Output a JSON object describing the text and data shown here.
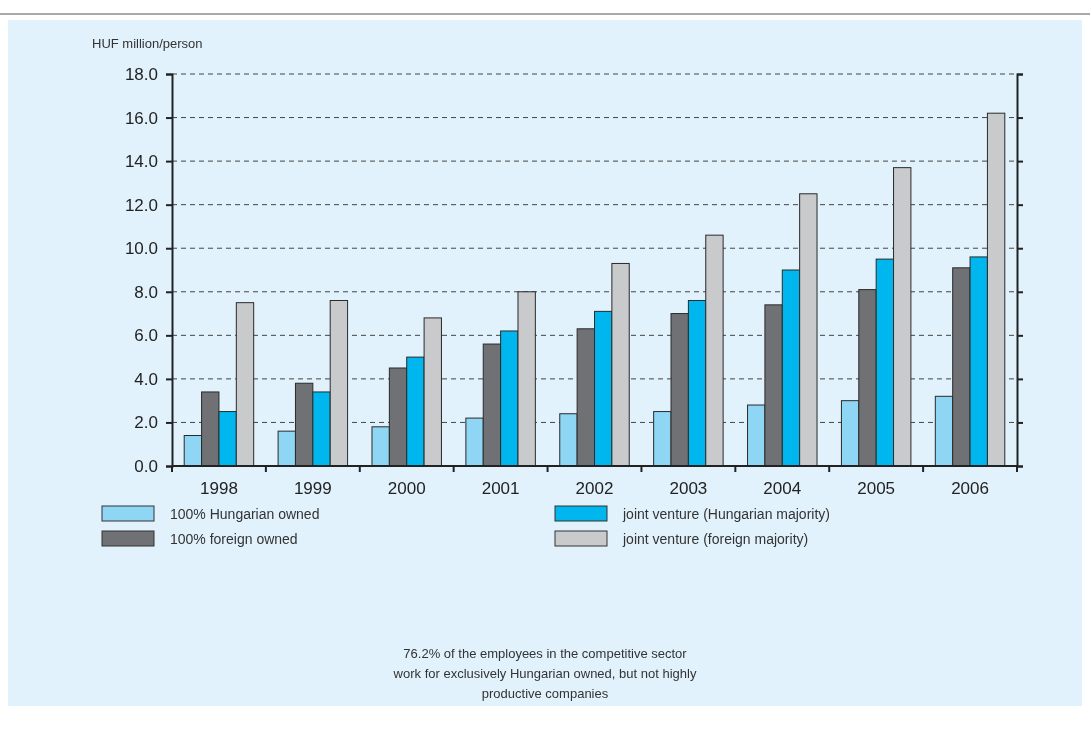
{
  "chart_data": {
    "type": "bar",
    "ylabel": "HUF million/person",
    "categories": [
      "1998",
      "1999",
      "2000",
      "2001",
      "2002",
      "2003",
      "2004",
      "2005",
      "2006"
    ],
    "series": [
      {
        "name": "100% Hungarian owned",
        "color": "#8fd6f4",
        "values": [
          1.4,
          1.6,
          1.8,
          2.2,
          2.4,
          2.5,
          2.8,
          3.0,
          3.2
        ]
      },
      {
        "name": "100% foreign owned",
        "color": "#707174",
        "values": [
          3.4,
          3.8,
          4.5,
          5.6,
          6.3,
          7.0,
          7.4,
          8.1,
          9.1
        ]
      },
      {
        "name": "joint venture (Hungarian majority)",
        "color": "#00b6ee",
        "values": [
          2.5,
          3.4,
          5.0,
          6.2,
          7.1,
          7.6,
          9.0,
          9.5,
          9.6
        ]
      },
      {
        "name": "joint venture (foreign majority)",
        "color": "#c9cacc",
        "values": [
          7.5,
          7.6,
          6.8,
          8.0,
          9.3,
          10.6,
          12.5,
          13.7,
          16.2
        ]
      }
    ],
    "ylim": [
      0,
      18
    ],
    "yticks": [
      {
        "value": 0,
        "label": "0.0"
      },
      {
        "value": 2,
        "label": "2.0"
      },
      {
        "value": 4,
        "label": "4.0"
      },
      {
        "value": 6,
        "label": "6.0"
      },
      {
        "value": 8,
        "label": "8.0"
      },
      {
        "value": 10,
        "label": "10.0"
      },
      {
        "value": 12,
        "label": "12.0"
      },
      {
        "value": 14,
        "label": "14.0"
      },
      {
        "value": 16,
        "label": "16.0"
      },
      {
        "value": 18,
        "label": "18.0"
      }
    ],
    "grid": "y",
    "legend": "bottom",
    "annotations": [
      "76.2% of the employees in the competitive sector work for exclusively Hungarian owned, but not highly productive companies"
    ]
  }
}
